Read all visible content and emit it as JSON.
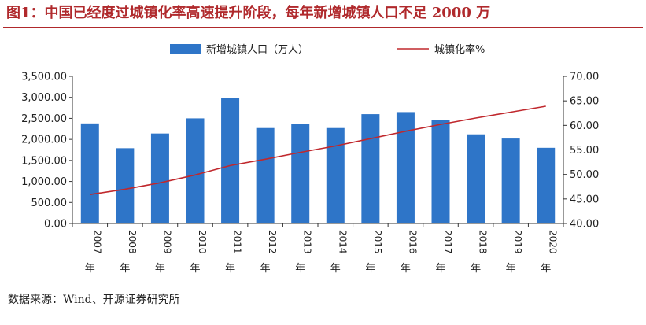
{
  "header": {
    "title": "图1：中国已经度过城镇化率高速提升阶段，每年新增城镇人口不足 2000 万"
  },
  "footer": {
    "source": "数据来源：Wind、开源证券研究所"
  },
  "colors": {
    "bar": "#2e75c8",
    "line": "#c0282d",
    "accent": "#b0292c",
    "axis": "#333333"
  },
  "chart_data": {
    "type": "bar",
    "categories": [
      "2007年",
      "2008年",
      "2009年",
      "2010年",
      "2011年",
      "2012年",
      "2013年",
      "2014年",
      "2015年",
      "2016年",
      "2017年",
      "2018年",
      "2019年",
      "2020年"
    ],
    "series": [
      {
        "name": "新增城镇人口（万人）",
        "type": "bar",
        "axis": "left",
        "values": [
          2380,
          1790,
          2140,
          2500,
          2990,
          2270,
          2360,
          2270,
          2600,
          2650,
          2460,
          2120,
          2020,
          1800
        ]
      },
      {
        "name": "城镇化率%",
        "type": "line",
        "axis": "right",
        "values": [
          45.9,
          47.0,
          48.3,
          49.9,
          51.8,
          53.1,
          54.5,
          55.8,
          57.3,
          58.8,
          60.2,
          61.5,
          62.7,
          63.9
        ]
      }
    ],
    "y_left": {
      "ylim": [
        0,
        3500
      ],
      "ticks": [
        "0.00",
        "500.00",
        "1,000.00",
        "1,500.00",
        "2,000.00",
        "2,500.00",
        "3,000.00",
        "3,500.00"
      ]
    },
    "y_right": {
      "ylim": [
        40,
        70
      ],
      "ticks": [
        "40.00",
        "45.00",
        "50.00",
        "55.00",
        "60.00",
        "65.00",
        "70.00"
      ]
    },
    "legend_position": "top",
    "grid": false
  }
}
